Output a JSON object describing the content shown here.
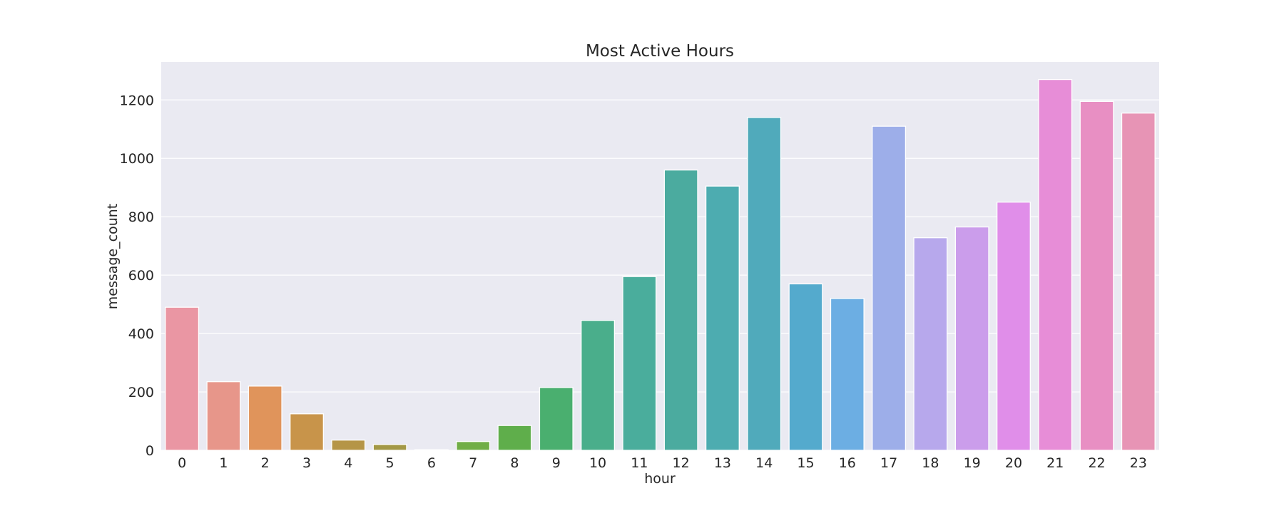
{
  "chart_data": {
    "type": "bar",
    "title": "Most Active Hours",
    "xlabel": "hour",
    "ylabel": "message_count",
    "categories": [
      "0",
      "1",
      "2",
      "3",
      "4",
      "5",
      "6",
      "7",
      "8",
      "9",
      "10",
      "11",
      "12",
      "13",
      "14",
      "15",
      "16",
      "17",
      "18",
      "19",
      "20",
      "21",
      "22",
      "23"
    ],
    "values": [
      490,
      235,
      220,
      125,
      35,
      20,
      2,
      30,
      85,
      215,
      445,
      595,
      960,
      905,
      1140,
      570,
      520,
      1110,
      728,
      765,
      850,
      1270,
      1195,
      1155
    ],
    "ylim": [
      0,
      1330
    ],
    "yticks": [
      0,
      200,
      400,
      600,
      800,
      1000,
      1200
    ],
    "grid": true,
    "legend": "none",
    "colors": [
      "#ea96a3",
      "#e7968a",
      "#e0945b",
      "#c8944a",
      "#b59547",
      "#a39845",
      "#94a346",
      "#71ae46",
      "#5fae4b",
      "#4aaf6f",
      "#4aae8b",
      "#4aad9c",
      "#4bab9f",
      "#4dacb0",
      "#50aabb",
      "#54aacd",
      "#6caee3",
      "#9daee9",
      "#b7a8ec",
      "#cb9deb",
      "#e08ee9",
      "#e78dd7",
      "#e88fc3",
      "#e794b5"
    ],
    "plot_bg": "#eaeaf2",
    "page_bg": "#ffffff"
  }
}
